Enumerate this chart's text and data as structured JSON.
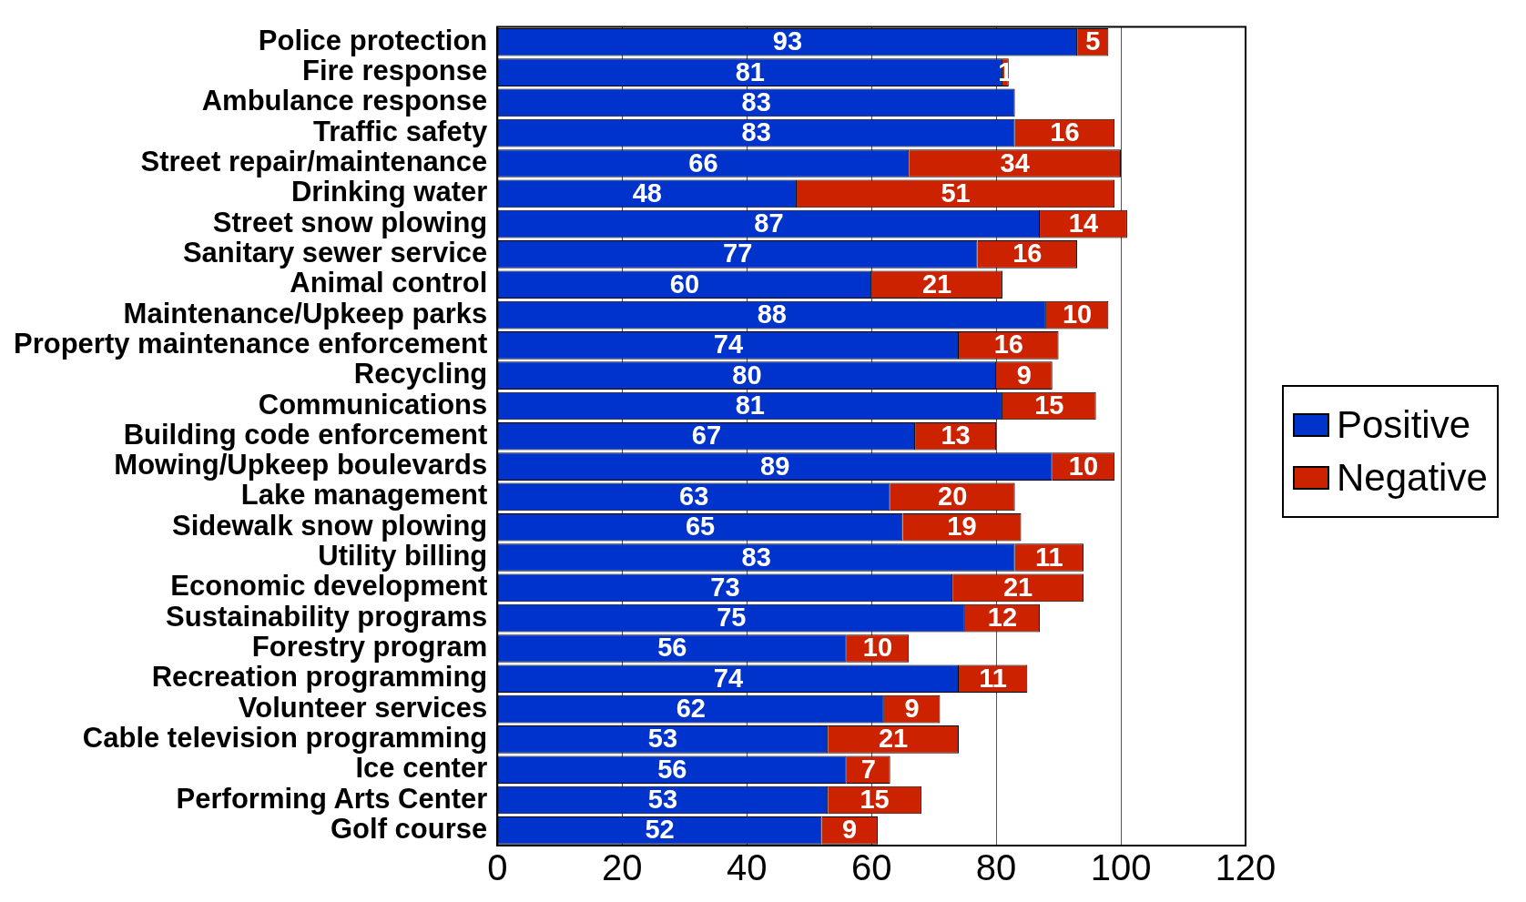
{
  "chart_data": {
    "type": "bar",
    "orientation": "horizontal",
    "stacked": true,
    "categories": [
      "Police protection",
      "Fire response",
      "Ambulance response",
      "Traffic safety",
      "Street repair/maintenance",
      "Drinking water",
      "Street snow plowing",
      "Sanitary sewer service",
      "Animal control",
      "Maintenance/Upkeep parks",
      "Property maintenance enforcement",
      "Recycling",
      "Communications",
      "Building code enforcement",
      "Mowing/Upkeep boulevards",
      "Lake management",
      "Sidewalk snow plowing",
      "Utility billing",
      "Economic development",
      "Sustainability programs",
      "Forestry program",
      "Recreation programming",
      "Volunteer services",
      "Cable television programming",
      "Ice center",
      "Performing Arts Center",
      "Golf course"
    ],
    "series": [
      {
        "name": "Positive",
        "color": "#0033cc",
        "values": [
          93,
          81,
          83,
          83,
          66,
          48,
          87,
          77,
          60,
          88,
          74,
          80,
          81,
          67,
          89,
          63,
          65,
          83,
          73,
          75,
          56,
          74,
          62,
          53,
          56,
          53,
          52
        ]
      },
      {
        "name": "Negative",
        "color": "#cc2200",
        "values": [
          5,
          1,
          null,
          16,
          34,
          51,
          14,
          16,
          21,
          10,
          16,
          9,
          15,
          13,
          10,
          20,
          19,
          11,
          21,
          12,
          10,
          11,
          9,
          21,
          7,
          15,
          9
        ]
      }
    ],
    "xlim": [
      0,
      120
    ],
    "xticks": [
      0,
      20,
      40,
      60,
      80,
      100,
      120
    ],
    "grid": "x",
    "legend": "right",
    "data_labels": true
  }
}
